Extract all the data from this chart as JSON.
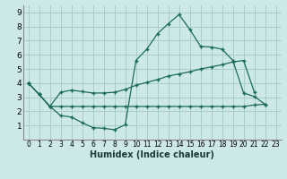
{
  "background_color": "#cde8e8",
  "grid_color": "#aacccc",
  "line_color": "#1a6b5a",
  "marker": "+",
  "xlabel": "Humidex (Indice chaleur)",
  "xlim": [
    -0.5,
    23.5
  ],
  "ylim": [
    0,
    9.5
  ],
  "xticks": [
    0,
    1,
    2,
    3,
    4,
    5,
    6,
    7,
    8,
    9,
    10,
    11,
    12,
    13,
    14,
    15,
    16,
    17,
    18,
    19,
    20,
    21,
    22,
    23
  ],
  "yticks": [
    1,
    2,
    3,
    4,
    5,
    6,
    7,
    8,
    9
  ],
  "curve1_x": [
    0,
    1,
    2,
    3,
    4,
    5,
    6,
    7,
    8,
    9,
    10,
    11,
    12,
    13,
    14,
    15,
    16,
    17,
    18,
    19,
    20,
    21,
    22
  ],
  "curve1_y": [
    4.0,
    3.2,
    2.35,
    1.7,
    1.6,
    1.2,
    0.85,
    0.8,
    0.7,
    1.05,
    5.6,
    6.4,
    7.5,
    8.2,
    8.85,
    7.8,
    6.6,
    6.55,
    6.4,
    5.6,
    3.3,
    3.05,
    2.5
  ],
  "curve2_x": [
    0,
    1,
    2,
    3,
    4,
    5,
    6,
    7,
    8,
    9,
    10,
    11,
    12,
    13,
    14,
    15,
    16,
    17,
    18,
    19,
    20,
    21
  ],
  "curve2_y": [
    4.0,
    3.2,
    2.35,
    3.35,
    3.5,
    3.4,
    3.3,
    3.3,
    3.35,
    3.55,
    3.85,
    4.05,
    4.25,
    4.5,
    4.65,
    4.8,
    5.0,
    5.15,
    5.3,
    5.5,
    5.6,
    3.35
  ],
  "curve3_x": [
    0,
    1,
    2,
    3,
    4,
    5,
    6,
    7,
    8,
    9,
    10,
    11,
    12,
    13,
    14,
    15,
    16,
    17,
    18,
    19,
    20,
    21,
    22
  ],
  "curve3_y": [
    4.0,
    3.2,
    2.35,
    2.35,
    2.35,
    2.35,
    2.35,
    2.35,
    2.35,
    2.35,
    2.35,
    2.35,
    2.35,
    2.35,
    2.35,
    2.35,
    2.35,
    2.35,
    2.35,
    2.35,
    2.35,
    2.45,
    2.5
  ]
}
